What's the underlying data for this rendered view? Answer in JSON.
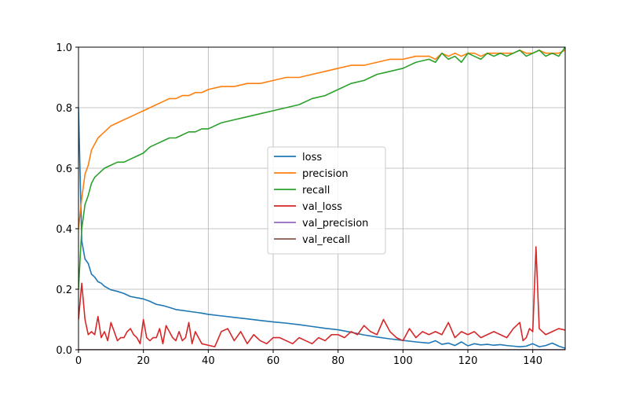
{
  "chart_data": {
    "type": "line",
    "xlim": [
      0,
      150
    ],
    "ylim": [
      0,
      1.0
    ],
    "grid": true,
    "legend_position": "center",
    "x_ticks": [
      "0",
      "20",
      "40",
      "60",
      "80",
      "100",
      "120",
      "140"
    ],
    "x_tick_values": [
      0,
      20,
      40,
      60,
      80,
      100,
      120,
      140
    ],
    "y_ticks": [
      "0.0",
      "0.2",
      "0.4",
      "0.6",
      "0.8",
      "1.0"
    ],
    "y_tick_values": [
      0,
      0.2,
      0.4,
      0.6,
      0.8,
      1.0
    ],
    "series": [
      {
        "name": "loss",
        "color": "#1f77b4",
        "x": [
          0,
          1,
          2,
          3,
          4,
          5,
          6,
          7,
          8,
          10,
          12,
          14,
          16,
          18,
          20,
          22,
          24,
          26,
          28,
          30,
          32,
          34,
          36,
          38,
          40,
          44,
          48,
          52,
          56,
          60,
          64,
          68,
          72,
          76,
          80,
          84,
          88,
          92,
          96,
          100,
          104,
          108,
          110,
          112,
          114,
          116,
          118,
          120,
          122,
          124,
          126,
          128,
          130,
          132,
          134,
          136,
          138,
          140,
          142,
          144,
          146,
          148,
          150
        ],
        "y": [
          0.8,
          0.36,
          0.3,
          0.285,
          0.25,
          0.24,
          0.225,
          0.22,
          0.21,
          0.198,
          0.193,
          0.186,
          0.176,
          0.172,
          0.168,
          0.16,
          0.15,
          0.146,
          0.14,
          0.133,
          0.13,
          0.127,
          0.124,
          0.121,
          0.117,
          0.112,
          0.107,
          0.102,
          0.097,
          0.092,
          0.088,
          0.083,
          0.077,
          0.071,
          0.066,
          0.058,
          0.049,
          0.042,
          0.036,
          0.031,
          0.026,
          0.022,
          0.03,
          0.018,
          0.022,
          0.014,
          0.026,
          0.013,
          0.02,
          0.016,
          0.018,
          0.015,
          0.017,
          0.014,
          0.012,
          0.01,
          0.012,
          0.02,
          0.01,
          0.014,
          0.022,
          0.012,
          0.005
        ]
      },
      {
        "name": "precision",
        "color": "#ff7f0e",
        "x": [
          0,
          1,
          2,
          3,
          4,
          5,
          6,
          7,
          8,
          10,
          12,
          14,
          16,
          18,
          20,
          22,
          24,
          26,
          28,
          30,
          32,
          34,
          36,
          38,
          40,
          44,
          48,
          52,
          56,
          60,
          64,
          68,
          72,
          76,
          80,
          84,
          88,
          92,
          96,
          100,
          104,
          108,
          110,
          112,
          114,
          116,
          118,
          120,
          122,
          124,
          126,
          128,
          130,
          132,
          134,
          136,
          138,
          140,
          142,
          144,
          146,
          148,
          150
        ],
        "y": [
          0.4,
          0.5,
          0.58,
          0.61,
          0.66,
          0.68,
          0.7,
          0.71,
          0.72,
          0.74,
          0.75,
          0.76,
          0.77,
          0.78,
          0.79,
          0.8,
          0.81,
          0.82,
          0.83,
          0.83,
          0.84,
          0.84,
          0.85,
          0.85,
          0.86,
          0.87,
          0.87,
          0.88,
          0.88,
          0.89,
          0.9,
          0.9,
          0.91,
          0.92,
          0.93,
          0.94,
          0.94,
          0.95,
          0.96,
          0.96,
          0.97,
          0.97,
          0.96,
          0.98,
          0.97,
          0.98,
          0.97,
          0.98,
          0.98,
          0.97,
          0.98,
          0.98,
          0.98,
          0.98,
          0.98,
          0.99,
          0.98,
          0.98,
          0.99,
          0.98,
          0.98,
          0.98,
          0.99
        ]
      },
      {
        "name": "recall",
        "color": "#2ca02c",
        "x": [
          0,
          1,
          2,
          3,
          4,
          5,
          6,
          7,
          8,
          10,
          12,
          14,
          16,
          18,
          20,
          22,
          24,
          26,
          28,
          30,
          32,
          34,
          36,
          38,
          40,
          44,
          48,
          52,
          56,
          60,
          64,
          68,
          72,
          76,
          80,
          84,
          88,
          92,
          96,
          100,
          104,
          108,
          110,
          112,
          114,
          116,
          118,
          120,
          122,
          124,
          126,
          128,
          130,
          132,
          134,
          136,
          138,
          140,
          142,
          144,
          146,
          148,
          150
        ],
        "y": [
          0.2,
          0.4,
          0.48,
          0.51,
          0.55,
          0.57,
          0.58,
          0.59,
          0.6,
          0.61,
          0.62,
          0.62,
          0.63,
          0.64,
          0.65,
          0.67,
          0.68,
          0.69,
          0.7,
          0.7,
          0.71,
          0.72,
          0.72,
          0.73,
          0.73,
          0.75,
          0.76,
          0.77,
          0.78,
          0.79,
          0.8,
          0.81,
          0.83,
          0.84,
          0.86,
          0.88,
          0.89,
          0.91,
          0.92,
          0.93,
          0.95,
          0.96,
          0.95,
          0.98,
          0.96,
          0.97,
          0.95,
          0.98,
          0.97,
          0.96,
          0.98,
          0.97,
          0.98,
          0.97,
          0.98,
          0.99,
          0.97,
          0.98,
          0.99,
          0.97,
          0.98,
          0.97,
          1.0
        ]
      },
      {
        "name": "val_loss",
        "color": "#d62728",
        "x": [
          0,
          1,
          2,
          3,
          4,
          5,
          6,
          7,
          8,
          9,
          10,
          11,
          12,
          13,
          14,
          15,
          16,
          17,
          18,
          19,
          20,
          21,
          22,
          23,
          24,
          25,
          26,
          27,
          28,
          29,
          30,
          31,
          32,
          33,
          34,
          35,
          36,
          37,
          38,
          40,
          42,
          44,
          46,
          48,
          50,
          52,
          54,
          56,
          58,
          60,
          62,
          64,
          66,
          68,
          70,
          72,
          74,
          76,
          78,
          80,
          82,
          84,
          86,
          88,
          90,
          92,
          94,
          96,
          98,
          100,
          102,
          104,
          106,
          108,
          110,
          112,
          114,
          116,
          118,
          120,
          122,
          124,
          126,
          128,
          130,
          132,
          134,
          136,
          137,
          138,
          139,
          140,
          141,
          142,
          143,
          144,
          146,
          148,
          150
        ],
        "y": [
          0.1,
          0.22,
          0.1,
          0.05,
          0.06,
          0.05,
          0.11,
          0.04,
          0.06,
          0.03,
          0.09,
          0.06,
          0.03,
          0.04,
          0.04,
          0.06,
          0.07,
          0.05,
          0.04,
          0.02,
          0.1,
          0.04,
          0.03,
          0.04,
          0.04,
          0.07,
          0.02,
          0.08,
          0.06,
          0.04,
          0.03,
          0.06,
          0.03,
          0.04,
          0.09,
          0.02,
          0.06,
          0.04,
          0.02,
          0.015,
          0.01,
          0.06,
          0.07,
          0.03,
          0.06,
          0.02,
          0.05,
          0.03,
          0.02,
          0.04,
          0.04,
          0.03,
          0.02,
          0.04,
          0.03,
          0.02,
          0.04,
          0.03,
          0.05,
          0.05,
          0.04,
          0.06,
          0.05,
          0.08,
          0.06,
          0.05,
          0.1,
          0.06,
          0.04,
          0.03,
          0.07,
          0.04,
          0.06,
          0.05,
          0.06,
          0.05,
          0.09,
          0.04,
          0.06,
          0.05,
          0.06,
          0.04,
          0.05,
          0.06,
          0.05,
          0.04,
          0.07,
          0.09,
          0.03,
          0.04,
          0.07,
          0.06,
          0.34,
          0.07,
          0.06,
          0.05,
          0.06,
          0.07,
          0.065
        ]
      },
      {
        "name": "val_precision",
        "color": "#9467bd",
        "x": [
          0,
          150
        ],
        "y": [
          0,
          0
        ]
      },
      {
        "name": "val_recall",
        "color": "#8c564b",
        "x": [
          0,
          150
        ],
        "y": [
          0,
          0
        ]
      }
    ]
  }
}
